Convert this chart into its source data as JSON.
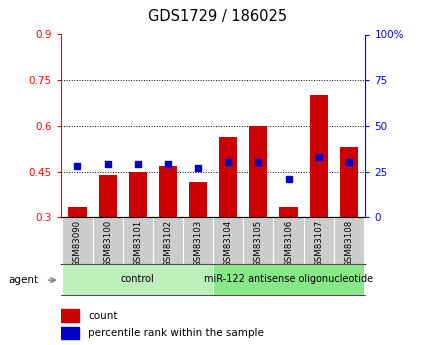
{
  "title": "GDS1729 / 186025",
  "categories": [
    "GSM83090",
    "GSM83100",
    "GSM83101",
    "GSM83102",
    "GSM83103",
    "GSM83104",
    "GSM83105",
    "GSM83106",
    "GSM83107",
    "GSM83108"
  ],
  "red_values": [
    0.335,
    0.44,
    0.45,
    0.468,
    0.415,
    0.565,
    0.6,
    0.335,
    0.7,
    0.53
  ],
  "blue_pct": [
    28,
    29,
    29,
    29,
    27,
    30,
    30,
    21,
    33,
    30
  ],
  "ylim_left": [
    0.3,
    0.9
  ],
  "ylim_right": [
    0,
    100
  ],
  "yticks_left": [
    0.3,
    0.45,
    0.6,
    0.75,
    0.9
  ],
  "yticks_right": [
    0,
    25,
    50,
    75,
    100
  ],
  "ytick_labels_left": [
    "0.3",
    "0.45",
    "0.6",
    "0.75",
    "0.9"
  ],
  "ytick_labels_right": [
    "0",
    "25",
    "50",
    "75",
    "100%"
  ],
  "groups": [
    {
      "label": "control",
      "start": 0,
      "end": 5,
      "color": "#bbf0bb"
    },
    {
      "label": "miR-122 antisense oligonucleotide",
      "start": 5,
      "end": 10,
      "color": "#88e888"
    }
  ],
  "bar_color": "#cc0000",
  "dot_color": "#0000cc",
  "bg_color": "#cccccc",
  "plot_bg": "#ffffff",
  "legend_count_color": "#cc0000",
  "legend_pct_color": "#0000cc",
  "agent_label": "agent",
  "agent_arrow_color": "#888888",
  "grid_color": "#000000",
  "grid_style": "dotted"
}
